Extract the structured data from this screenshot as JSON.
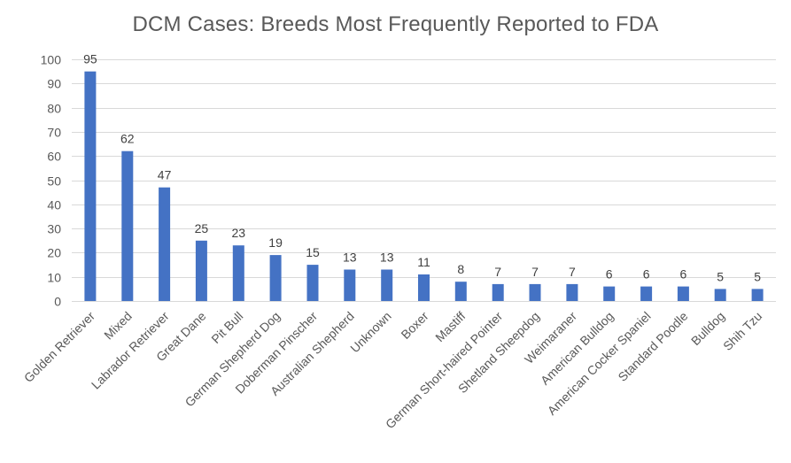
{
  "chart_data": {
    "type": "bar",
    "title": "DCM Cases: Breeds Most Frequently Reported to FDA",
    "xlabel": "",
    "ylabel": "",
    "ylim": [
      0,
      100
    ],
    "yticks": [
      0,
      10,
      20,
      30,
      40,
      50,
      60,
      70,
      80,
      90,
      100
    ],
    "grid": true,
    "legend": "none",
    "bar_color": "#4472C4",
    "categories": [
      "Golden Retriever",
      "Mixed",
      "Labrador Retriever",
      "Great Dane",
      "Pit Bull",
      "German Shepherd Dog",
      "Doberman Pinscher",
      "Australian Shepherd",
      "Unknown",
      "Boxer",
      "Mastiff",
      "German Short-haired Pointer",
      "Shetland Sheepdog",
      "Weimaraner",
      "American Bulldog",
      "American Cocker Spaniel",
      "Standard Poodle",
      "Bulldog",
      "Shih Tzu"
    ],
    "values": [
      95,
      62,
      47,
      25,
      23,
      19,
      15,
      13,
      13,
      11,
      8,
      7,
      7,
      7,
      6,
      6,
      6,
      5,
      5
    ]
  }
}
